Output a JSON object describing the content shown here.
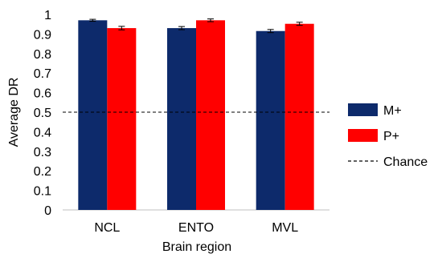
{
  "chart_data": {
    "type": "bar",
    "categories": [
      "NCL",
      "ENTO",
      "MVL"
    ],
    "series": [
      {
        "name": "M+",
        "color": "#0d2a6b",
        "values": [
          0.97,
          0.93,
          0.915
        ],
        "errors": [
          0.005,
          0.008,
          0.008
        ]
      },
      {
        "name": "P+",
        "color": "#ff0000",
        "values": [
          0.93,
          0.97,
          0.952
        ],
        "errors": [
          0.009,
          0.007,
          0.008
        ]
      }
    ],
    "reference_line": {
      "name": "Chance",
      "value": 0.5,
      "style": "dashed",
      "color": "#000000"
    },
    "xlabel": "Brain region",
    "ylabel": "Average DR",
    "ylim": [
      0,
      1
    ],
    "yticks": [
      "0",
      "0.1",
      "0.2",
      "0.3",
      "0.4",
      "0.5",
      "0.6",
      "0.7",
      "0.8",
      "0.9",
      "1"
    ],
    "grid": false,
    "legend_position": "right"
  }
}
